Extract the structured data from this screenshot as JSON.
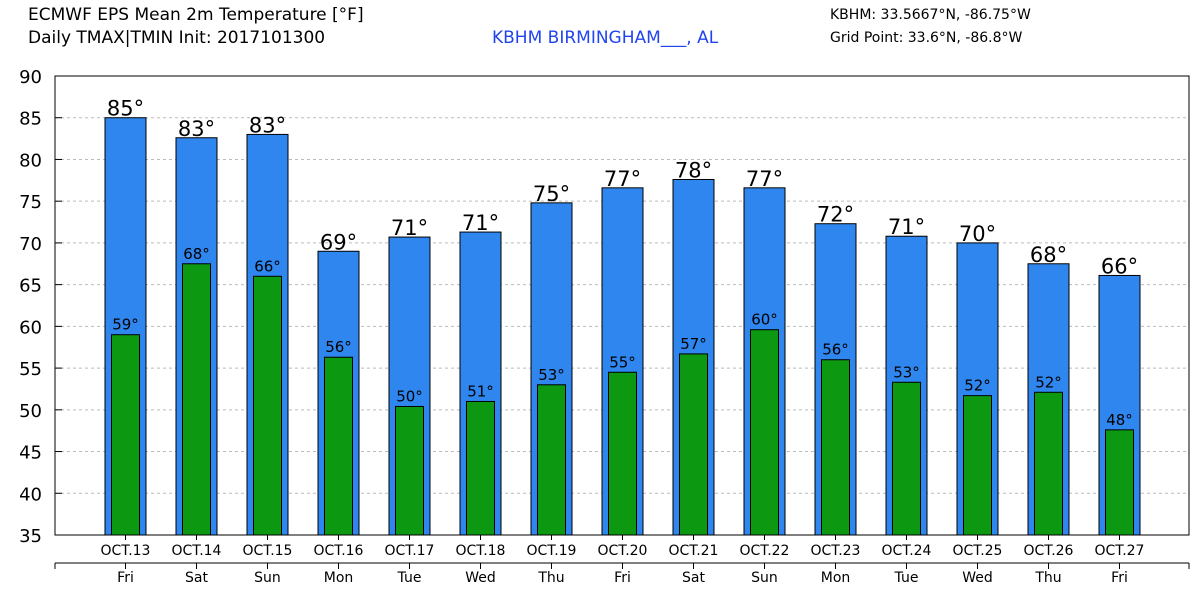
{
  "header": {
    "title_line1": "ECMWF EPS Mean 2m Temperature [°F]",
    "title_line2": "Daily TMAX|TMIN Init: 2017101300",
    "location": "KBHM BIRMINGHAM___, AL",
    "coord_line1": "KBHM: 33.5667°N, -86.75°W",
    "coord_line2": "Grid Point: 33.6°N, -86.8°W"
  },
  "colors": {
    "tmax_bar": "#2e86ee",
    "tmin_bar": "#0d9812",
    "location_text": "#2244ee",
    "grid": "#bbbbbb"
  },
  "chart_data": {
    "type": "bar",
    "categories": [
      "OCT.13",
      "OCT.14",
      "OCT.15",
      "OCT.16",
      "OCT.17",
      "OCT.18",
      "OCT.19",
      "OCT.20",
      "OCT.21",
      "OCT.22",
      "OCT.23",
      "OCT.24",
      "OCT.25",
      "OCT.26",
      "OCT.27"
    ],
    "day_labels": [
      "Fri",
      "Sat",
      "Sun",
      "Mon",
      "Tue",
      "Wed",
      "Thu",
      "Fri",
      "Sat",
      "Sun",
      "Mon",
      "Tue",
      "Wed",
      "Thu",
      "Fri"
    ],
    "series": [
      {
        "values": [
          85,
          82.6,
          83,
          69,
          70.7,
          71.3,
          74.8,
          76.6,
          77.6,
          76.6,
          72.3,
          70.8,
          70,
          67.5,
          66.1
        ],
        "labels": [
          "85°",
          "83°",
          "83°",
          "69°",
          "71°",
          "71°",
          "75°",
          "77°",
          "78°",
          "77°",
          "72°",
          "71°",
          "70°",
          "68°",
          "66°"
        ]
      },
      {
        "values": [
          59,
          67.5,
          66,
          56.3,
          50.4,
          51,
          53,
          54.5,
          56.7,
          59.6,
          56,
          53.3,
          51.7,
          52.1,
          47.6
        ],
        "labels": [
          "59°",
          "68°",
          "66°",
          "56°",
          "50°",
          "51°",
          "53°",
          "55°",
          "57°",
          "60°",
          "56°",
          "53°",
          "52°",
          "52°",
          "48°"
        ]
      }
    ],
    "ylim": [
      35,
      90
    ],
    "yticks": [
      35,
      40,
      45,
      50,
      55,
      60,
      65,
      70,
      75,
      80,
      85,
      90
    ],
    "grid": true
  }
}
